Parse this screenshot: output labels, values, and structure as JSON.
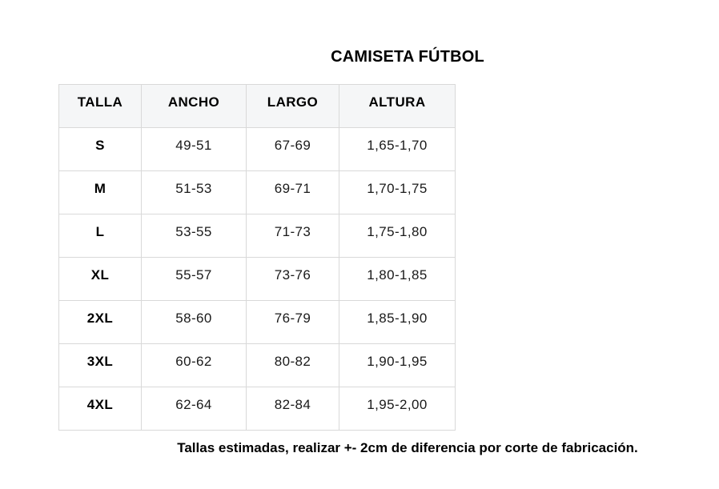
{
  "title": "CAMISETA FÚTBOL",
  "footer_note": "Tallas estimadas, realizar +- 2cm de diferencia por corte de fabricación.",
  "colors": {
    "header_background": "#f5f6f7",
    "cell_background": "#ffffff",
    "border": "#d9d9d9",
    "text": "#000000"
  },
  "chart_data": {
    "type": "table",
    "title": "CAMISETA FÚTBOL",
    "columns": [
      "TALLA",
      "ANCHO",
      "LARGO",
      "ALTURA"
    ],
    "rows": [
      [
        "S",
        "49-51",
        "67-69",
        "1,65-1,70"
      ],
      [
        "M",
        "51-53",
        "69-71",
        "1,70-1,75"
      ],
      [
        "L",
        "53-55",
        "71-73",
        "1,75-1,80"
      ],
      [
        "XL",
        "55-57",
        "73-76",
        "1,80-1,85"
      ],
      [
        "2XL",
        "58-60",
        "76-79",
        "1,85-1,90"
      ],
      [
        "3XL",
        "60-62",
        "80-82",
        "1,90-1,95"
      ],
      [
        "4XL",
        "62-64",
        "82-84",
        "1,95-2,00"
      ]
    ],
    "note": "Tallas estimadas, realizar +- 2cm de diferencia por corte de fabricación."
  }
}
